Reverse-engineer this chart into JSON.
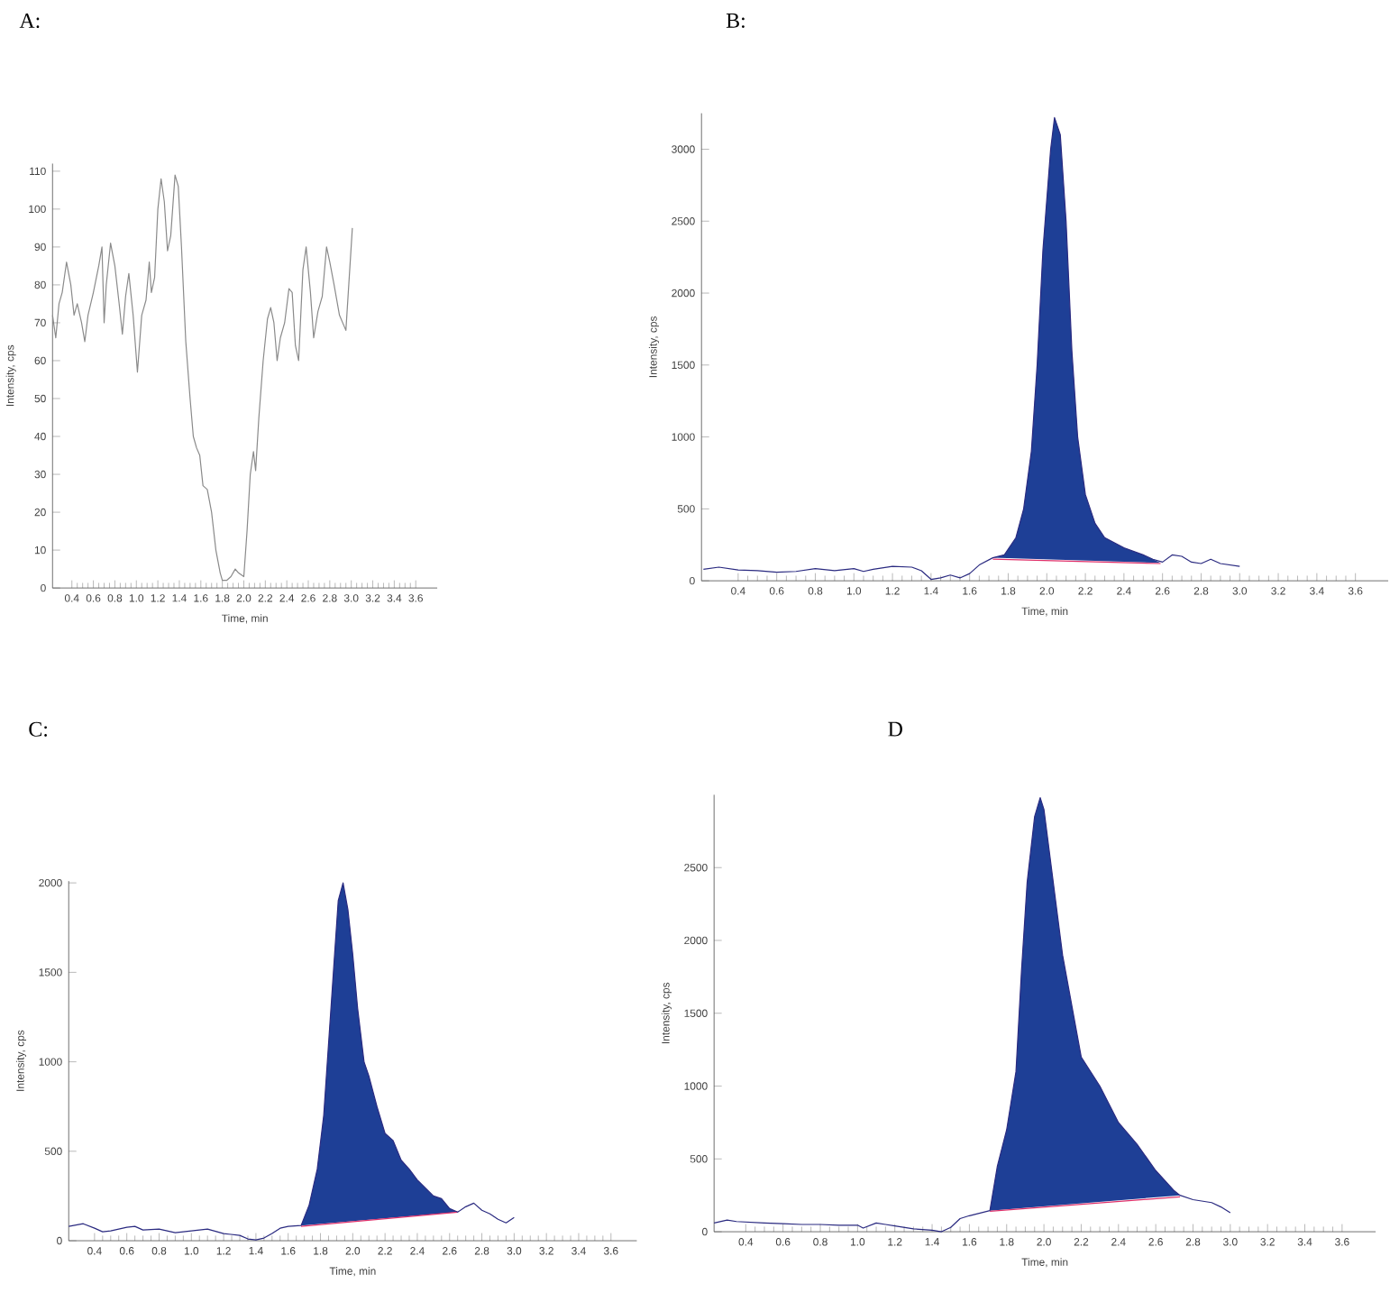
{
  "chart_data": [
    {
      "type": "line",
      "title": "A:",
      "xlabel": "Time, min",
      "ylabel": "Intensity, cps",
      "xlim": [
        0.22,
        3.8
      ],
      "xticks": [
        0.4,
        0.6,
        0.8,
        {
          "value": 1.0,
          "label": "1.0"
        },
        1.2,
        1.4,
        1.6,
        1.8,
        {
          "value": 2.0,
          "label": "2.0"
        },
        2.2,
        2.4,
        2.6,
        2.8,
        {
          "value": 3.0,
          "label": "3.0"
        },
        3.2,
        3.4,
        3.6
      ],
      "ylim": [
        0,
        112
      ],
      "yticks": [
        0,
        10,
        20,
        30,
        40,
        50,
        60,
        70,
        80,
        90,
        100,
        110
      ],
      "series": [
        {
          "color": "#8a8a8a",
          "x": [
            0.22,
            0.25,
            0.28,
            0.31,
            0.35,
            0.39,
            0.42,
            0.45,
            0.49,
            0.52,
            0.55,
            0.6,
            0.65,
            0.68,
            0.7,
            0.72,
            0.76,
            0.8,
            0.84,
            0.87,
            0.9,
            0.93,
            0.97,
            1.01,
            1.05,
            1.09,
            1.12,
            1.14,
            1.17,
            1.2,
            1.23,
            1.26,
            1.29,
            1.32,
            1.36,
            1.39,
            1.42,
            1.46,
            1.5,
            1.53,
            1.56,
            1.59,
            1.62,
            1.66,
            1.7,
            1.74,
            1.78,
            1.8,
            1.84,
            1.88,
            1.92,
            1.95,
            2.0,
            2.03,
            2.06,
            2.09,
            2.11,
            2.14,
            2.18,
            2.22,
            2.25,
            2.28,
            2.31,
            2.34,
            2.38,
            2.42,
            2.45,
            2.48,
            2.51,
            2.55,
            2.58,
            2.62,
            2.65,
            2.69,
            2.73,
            2.77,
            2.8,
            2.84,
            2.89,
            2.95,
            3.01
          ],
          "values": [
            72,
            66,
            75,
            78,
            86,
            80,
            72,
            75,
            70,
            65,
            72,
            78,
            85,
            90,
            70,
            80,
            91,
            85,
            75,
            67,
            77,
            83,
            72,
            57,
            72,
            76,
            86,
            78,
            82,
            100,
            108,
            102,
            89,
            93,
            109,
            106,
            90,
            65,
            50,
            40,
            37,
            35,
            27,
            26,
            20,
            10,
            4,
            2,
            2,
            3,
            5,
            4,
            3,
            15,
            30,
            36,
            31,
            45,
            60,
            71,
            74,
            70,
            60,
            66,
            70,
            79,
            78,
            64,
            60,
            84,
            90,
            78,
            66,
            73,
            77,
            90,
            86,
            80,
            72,
            68,
            95
          ]
        }
      ]
    },
    {
      "type": "line",
      "title": "B:",
      "xlabel": "Time, min",
      "ylabel": "Intensity, cps",
      "xlim": [
        0.21,
        3.77
      ],
      "xticks": [
        0.4,
        0.6,
        0.8,
        {
          "value": 1.0,
          "label": "1.0"
        },
        1.2,
        1.4,
        1.6,
        1.8,
        {
          "value": 2.0,
          "label": "2.0"
        },
        2.2,
        2.4,
        2.6,
        2.8,
        {
          "value": 3.0,
          "label": "3.0"
        },
        3.2,
        3.4,
        3.6
      ],
      "ylim": [
        0,
        3250
      ],
      "yticks": [
        0,
        500,
        1000,
        1500,
        2000,
        2500,
        3000
      ],
      "series": [
        {
          "type": "area",
          "color": "#1e3f96",
          "x": [
            1.72,
            1.78,
            1.84,
            1.88,
            1.92,
            1.95,
            1.98,
            2.02,
            2.04,
            2.07,
            2.1,
            2.13,
            2.16,
            2.2,
            2.25,
            2.3,
            2.4,
            2.5,
            2.55,
            2.59
          ],
          "values": [
            160,
            180,
            300,
            500,
            900,
            1500,
            2300,
            3000,
            3220,
            3100,
            2500,
            1600,
            1000,
            600,
            400,
            300,
            230,
            180,
            150,
            125
          ]
        },
        {
          "type": "line",
          "color": "#e0306a",
          "x": [
            1.72,
            2.59
          ],
          "values": [
            150,
            120
          ]
        },
        {
          "color": "#2a2a80",
          "x": [
            0.22,
            0.3,
            0.4,
            0.5,
            0.6,
            0.7,
            0.8,
            0.9,
            1.0,
            1.05,
            1.1,
            1.2,
            1.3,
            1.35,
            1.4,
            1.45,
            1.5,
            1.55,
            1.6,
            1.65,
            1.72,
            1.78,
            1.84,
            1.88,
            1.92,
            1.95,
            1.98,
            2.02,
            2.04,
            2.07,
            2.1,
            2.13,
            2.16,
            2.2,
            2.25,
            2.3,
            2.4,
            2.5,
            2.55,
            2.6,
            2.65,
            2.7,
            2.75,
            2.8,
            2.85,
            2.9,
            3.0
          ],
          "values": [
            80,
            95,
            75,
            70,
            60,
            65,
            85,
            70,
            85,
            65,
            80,
            100,
            95,
            70,
            10,
            20,
            40,
            20,
            50,
            110,
            160,
            180,
            300,
            500,
            900,
            1500,
            2300,
            3000,
            3220,
            3100,
            2500,
            1600,
            1000,
            600,
            400,
            300,
            230,
            180,
            150,
            130,
            180,
            170,
            130,
            120,
            150,
            120,
            100
          ]
        }
      ]
    },
    {
      "type": "line",
      "title": "C:",
      "xlabel": "Time, min",
      "ylabel": "Intensity, cps",
      "xlim": [
        0.24,
        3.76
      ],
      "xticks": [
        0.4,
        0.6,
        0.8,
        {
          "value": 1.0,
          "label": "1.0"
        },
        1.2,
        1.4,
        1.6,
        1.8,
        {
          "value": 2.0,
          "label": "2.0"
        },
        2.2,
        2.4,
        2.6,
        2.8,
        {
          "value": 3.0,
          "label": "3.0"
        },
        3.2,
        3.4,
        3.6
      ],
      "ylim": [
        0,
        2010
      ],
      "yticks": [
        0,
        500,
        1000,
        1500,
        2000
      ],
      "series": [
        {
          "type": "area",
          "color": "#1e3f96",
          "x": [
            1.68,
            1.73,
            1.78,
            1.82,
            1.85,
            1.88,
            1.91,
            1.94,
            1.97,
            2.0,
            2.03,
            2.07,
            2.1,
            2.15,
            2.2,
            2.25,
            2.3,
            2.35,
            2.4,
            2.5,
            2.55,
            2.6,
            2.65
          ],
          "values": [
            85,
            200,
            400,
            700,
            1100,
            1500,
            1900,
            2000,
            1850,
            1600,
            1300,
            1000,
            920,
            750,
            600,
            560,
            450,
            400,
            340,
            250,
            235,
            180,
            160
          ]
        },
        {
          "type": "line",
          "color": "#e0306a",
          "x": [
            1.68,
            2.65
          ],
          "values": [
            80,
            160
          ]
        },
        {
          "color": "#2a2a80",
          "x": [
            0.24,
            0.33,
            0.4,
            0.45,
            0.5,
            0.6,
            0.65,
            0.7,
            0.8,
            0.9,
            1.0,
            1.1,
            1.2,
            1.3,
            1.35,
            1.4,
            1.45,
            1.5,
            1.55,
            1.6,
            1.68,
            1.73,
            1.78,
            1.82,
            1.85,
            1.88,
            1.91,
            1.94,
            1.97,
            2.0,
            2.03,
            2.07,
            2.1,
            2.15,
            2.2,
            2.25,
            2.3,
            2.35,
            2.4,
            2.5,
            2.55,
            2.6,
            2.65,
            2.7,
            2.75,
            2.8,
            2.85,
            2.9,
            2.95,
            3.0
          ],
          "values": [
            80,
            95,
            70,
            50,
            55,
            75,
            80,
            60,
            65,
            45,
            55,
            65,
            40,
            30,
            10,
            5,
            15,
            40,
            70,
            80,
            85,
            200,
            400,
            700,
            1100,
            1500,
            1900,
            2000,
            1850,
            1600,
            1300,
            1000,
            920,
            750,
            600,
            560,
            450,
            400,
            340,
            250,
            235,
            180,
            160,
            190,
            210,
            170,
            150,
            120,
            100,
            130
          ]
        }
      ]
    },
    {
      "type": "line",
      "title": "D",
      "xlabel": "Time, min",
      "ylabel": "Intensity, cps",
      "xlim": [
        0.23,
        3.78
      ],
      "xticks": [
        0.4,
        0.6,
        0.8,
        {
          "value": 1.0,
          "label": "1.0"
        },
        1.2,
        1.4,
        1.6,
        1.8,
        {
          "value": 2.0,
          "label": "2.0"
        },
        2.2,
        2.4,
        2.6,
        2.8,
        {
          "value": 3.0,
          "label": "3.0"
        },
        3.2,
        3.4,
        3.6
      ],
      "ylim": [
        0,
        3000
      ],
      "yticks": [
        0,
        500,
        1000,
        1500,
        2000,
        2500
      ],
      "series": [
        {
          "type": "area",
          "color": "#1e3f96",
          "x": [
            1.71,
            1.75,
            1.8,
            1.85,
            1.88,
            1.91,
            1.95,
            1.98,
            2.0,
            2.05,
            2.1,
            2.15,
            2.2,
            2.3,
            2.4,
            2.5,
            2.6,
            2.7,
            2.73
          ],
          "values": [
            145,
            450,
            700,
            1100,
            1800,
            2400,
            2850,
            2980,
            2900,
            2400,
            1900,
            1550,
            1200,
            1000,
            750,
            600,
            420,
            280,
            250
          ]
        },
        {
          "type": "line",
          "color": "#e0306a",
          "x": [
            1.71,
            2.73
          ],
          "values": [
            140,
            240
          ]
        },
        {
          "color": "#2a2a80",
          "x": [
            0.23,
            0.3,
            0.35,
            0.5,
            0.6,
            0.7,
            0.8,
            0.9,
            1.0,
            1.03,
            1.1,
            1.15,
            1.2,
            1.3,
            1.4,
            1.45,
            1.5,
            1.55,
            1.6,
            1.71,
            1.75,
            1.8,
            1.85,
            1.88,
            1.91,
            1.95,
            1.98,
            2.0,
            2.05,
            2.1,
            2.15,
            2.2,
            2.3,
            2.4,
            2.5,
            2.6,
            2.7,
            2.73,
            2.8,
            2.9,
            2.95,
            3.0
          ],
          "values": [
            60,
            80,
            70,
            60,
            55,
            50,
            50,
            45,
            45,
            25,
            60,
            50,
            40,
            20,
            10,
            0,
            30,
            90,
            110,
            145,
            450,
            700,
            1100,
            1800,
            2400,
            2850,
            2980,
            2900,
            2400,
            1900,
            1550,
            1200,
            1000,
            750,
            600,
            420,
            280,
            250,
            220,
            200,
            170,
            130
          ]
        }
      ]
    }
  ]
}
